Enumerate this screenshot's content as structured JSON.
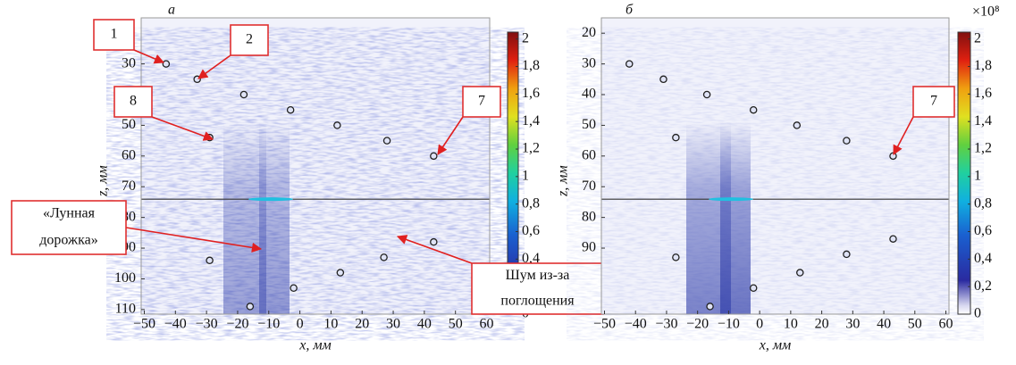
{
  "chart_data": [
    {
      "type": "heatmap",
      "panel_label": "а",
      "xlabel": "x, мм",
      "ylabel": "z, мм",
      "xlim": [
        -51,
        61
      ],
      "xticks": [
        {
          "value": -50,
          "label": "−50"
        },
        {
          "value": -40,
          "label": "−40"
        },
        {
          "value": -30,
          "label": "−30"
        },
        {
          "value": -20,
          "label": "−20"
        },
        {
          "value": -10,
          "label": "−10"
        },
        0,
        10,
        20,
        30,
        40,
        50,
        60
      ],
      "ylim": [
        15,
        111.5
      ],
      "yticks": [
        30,
        40,
        50,
        60,
        70,
        80,
        90,
        100,
        110
      ],
      "clim": [
        0,
        2.05
      ],
      "cticks": [
        0,
        {
          "value": 0.2,
          "label": "0,2"
        },
        {
          "value": 0.4,
          "label": "0,4"
        },
        {
          "value": 0.6,
          "label": "0,6"
        },
        {
          "value": 0.8,
          "label": "0,8"
        },
        1,
        {
          "value": 1.2,
          "label": "1,2"
        },
        {
          "value": 1.4,
          "label": "1,4"
        },
        {
          "value": 1.6,
          "label": "1,6"
        },
        {
          "value": 1.8,
          "label": "1,8"
        },
        2
      ],
      "reflectors": {
        "x": [
          -43,
          -33,
          -18,
          -3,
          12,
          28,
          43,
          -29,
          -29,
          -16,
          -2,
          13,
          27,
          43
        ],
        "z": [
          30,
          35,
          40,
          45,
          50,
          55,
          60,
          54,
          94,
          109,
          103,
          98,
          93,
          88
        ]
      },
      "annotations": [
        {
          "lines": [
            "1"
          ]
        },
        {
          "lines": [
            "2"
          ]
        },
        {
          "lines": [
            "8"
          ]
        },
        {
          "lines": [
            "7"
          ]
        },
        {
          "lines": [
            "«Лунная",
            "дорожка»"
          ]
        },
        {
          "lines": [
            "Шум из-за",
            "поглощения"
          ]
        }
      ]
    },
    {
      "type": "heatmap",
      "panel_label": "б",
      "xlabel": "x, мм",
      "ylabel": "z, мм",
      "exponent_label": "×10⁸",
      "xlim": [
        -51,
        61
      ],
      "xticks": [
        {
          "value": -50,
          "label": "−50"
        },
        {
          "value": -40,
          "label": "−40"
        },
        {
          "value": -30,
          "label": "−30"
        },
        {
          "value": -20,
          "label": "−20"
        },
        {
          "value": -10,
          "label": "−10"
        },
        0,
        10,
        20,
        30,
        40,
        50,
        60
      ],
      "ylim": [
        15,
        111.5
      ],
      "yticks": [
        20,
        30,
        40,
        50,
        60,
        70,
        80,
        90
      ],
      "clim": [
        0,
        2.05
      ],
      "cticks": [
        0,
        {
          "value": 0.2,
          "label": "0,2"
        },
        {
          "value": 0.4,
          "label": "0,4"
        },
        {
          "value": 0.6,
          "label": "0,6"
        },
        {
          "value": 0.8,
          "label": "0,8"
        },
        1,
        {
          "value": 1.2,
          "label": "1,2"
        },
        {
          "value": 1.4,
          "label": "1,4"
        },
        {
          "value": 1.6,
          "label": "1,6"
        },
        {
          "value": 1.8,
          "label": "1,8"
        },
        2
      ],
      "reflectors": {
        "x": [
          -42,
          -31,
          -17,
          -2,
          12,
          28,
          43,
          -27,
          -27,
          -16,
          -2,
          13,
          28,
          43
        ],
        "z": [
          30,
          35,
          40,
          45,
          50,
          55,
          60,
          54,
          93,
          109,
          103,
          98,
          92,
          87
        ]
      },
      "annotations": [
        {
          "lines": [
            "7"
          ]
        }
      ]
    }
  ]
}
